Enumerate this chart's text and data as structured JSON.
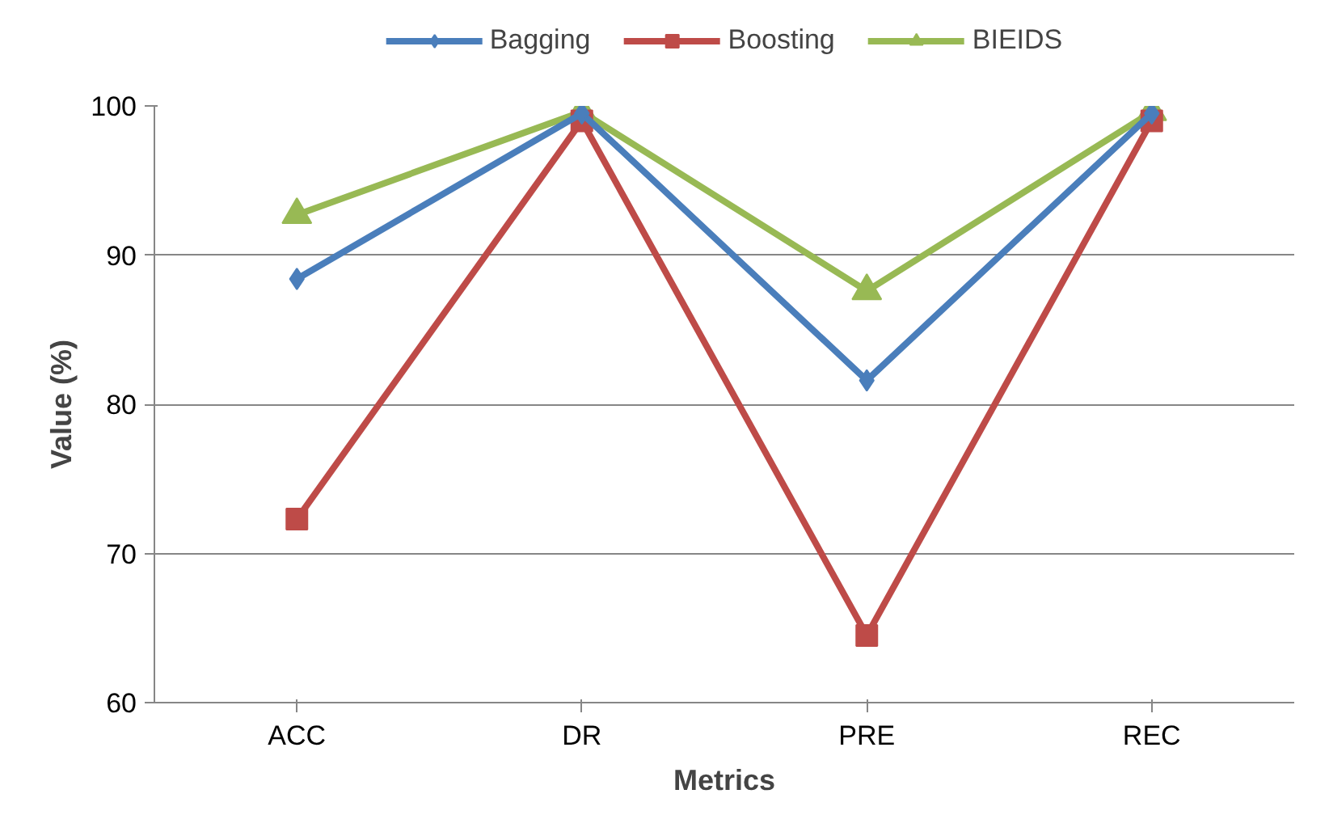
{
  "chart_data": {
    "type": "line",
    "xlabel": "Metrics",
    "ylabel": "Value (%)",
    "categories": [
      "ACC",
      "DR",
      "PRE",
      "REC"
    ],
    "series": [
      {
        "name": "Bagging",
        "color": "#4a7ebb",
        "marker": "diamond",
        "values": [
          88.4,
          99.5,
          81.6,
          99.5
        ]
      },
      {
        "name": "Boosting",
        "color": "#be4b48",
        "marker": "square",
        "values": [
          72.3,
          99.0,
          64.5,
          99.0
        ]
      },
      {
        "name": "BIEIDS",
        "color": "#98b954",
        "marker": "triangle",
        "values": [
          92.7,
          99.6,
          87.6,
          99.6
        ]
      }
    ],
    "ylim": [
      60,
      100
    ],
    "yticks": [
      60,
      70,
      80,
      90,
      100
    ],
    "grid": "y",
    "legend": "top"
  }
}
